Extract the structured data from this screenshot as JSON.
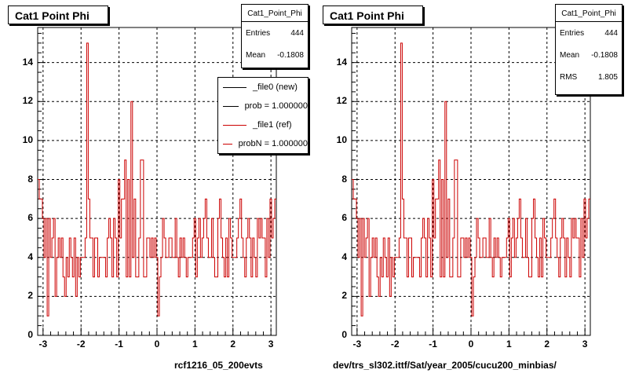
{
  "chart_data": [
    {
      "type": "line",
      "title": "Cat1 Point Phi",
      "xlim": [
        -3.1416,
        3.1416
      ],
      "ylim": [
        0,
        15.8
      ],
      "xticks": [
        -3,
        -2,
        -1,
        0,
        1,
        2,
        3
      ],
      "yticks": [
        0,
        2,
        4,
        6,
        8,
        10,
        12,
        14
      ],
      "grid": true,
      "caption": "rcf1216_05_200evts",
      "stats": {
        "title": "Cat1_Point_Phi",
        "rows": [
          {
            "label": "Entries",
            "value": "444"
          },
          {
            "label": "Mean",
            "value": "-0.1808"
          }
        ]
      },
      "legend": [
        {
          "label": "_file0 (new)",
          "color": "#000000"
        },
        {
          "label": "prob = 1.000000",
          "color": "#000000"
        },
        {
          "label": "_file1 (ref)",
          "color": "#cc0000"
        },
        {
          "label": "probN = 1.000000",
          "color": "#cc0000"
        }
      ],
      "series": [
        {
          "color": "#cc0000",
          "values": [
            8,
            7,
            7,
            6,
            4,
            6,
            1,
            6,
            4,
            5,
            6,
            2,
            4,
            5,
            4,
            5,
            3,
            2,
            4,
            3,
            5,
            4,
            3,
            5,
            2,
            4,
            3,
            4,
            4,
            4,
            5,
            15,
            7,
            5,
            5,
            3,
            5,
            5,
            3,
            4,
            4,
            4,
            4,
            3,
            5,
            6,
            5,
            3,
            6,
            5,
            3,
            8,
            5,
            7,
            7,
            9,
            3,
            8,
            3,
            12,
            4,
            7,
            3,
            3,
            5,
            9,
            9,
            3,
            3,
            5,
            5,
            4,
            5,
            4,
            5,
            4,
            1,
            3,
            4,
            6,
            5,
            4,
            4,
            5,
            5,
            4,
            4,
            6,
            4,
            3,
            5,
            4,
            5,
            4,
            3,
            4,
            4,
            4,
            5,
            6,
            3,
            5,
            6,
            4,
            5,
            6,
            7,
            5,
            4,
            4,
            6,
            4,
            3,
            3,
            6,
            7,
            5,
            4,
            3,
            5,
            3,
            6,
            5,
            4,
            4,
            4,
            5,
            6,
            7,
            5,
            4,
            3,
            5,
            6,
            5,
            3,
            5,
            4,
            3,
            6,
            5,
            6,
            5,
            5,
            3,
            6,
            4,
            7,
            5,
            6,
            7
          ]
        }
      ]
    },
    {
      "type": "line",
      "title": "Cat1 Point Phi",
      "xlim": [
        -3.1416,
        3.1416
      ],
      "ylim": [
        0,
        15.8
      ],
      "xticks": [
        -3,
        -2,
        -1,
        0,
        1,
        2,
        3
      ],
      "yticks": [
        0,
        2,
        4,
        6,
        8,
        10,
        12,
        14
      ],
      "grid": true,
      "caption": "dev/trs_sl302.ittf/Sat/year_2005/cucu200_minbias/",
      "stats": {
        "title": "Cat1_Point_Phi",
        "rows": [
          {
            "label": "Entries",
            "value": "444"
          },
          {
            "label": "Mean",
            "value": "-0.1808"
          },
          {
            "label": "RMS",
            "value": "1.805"
          }
        ]
      },
      "series": [
        {
          "color": "#cc0000",
          "values": [
            8,
            7,
            7,
            6,
            4,
            6,
            1,
            6,
            4,
            5,
            6,
            2,
            4,
            5,
            4,
            5,
            3,
            2,
            4,
            3,
            5,
            4,
            3,
            5,
            2,
            4,
            3,
            4,
            4,
            4,
            5,
            15,
            7,
            5,
            5,
            3,
            5,
            5,
            3,
            4,
            4,
            4,
            4,
            3,
            5,
            6,
            5,
            3,
            6,
            5,
            3,
            8,
            5,
            7,
            7,
            9,
            3,
            8,
            3,
            12,
            4,
            7,
            3,
            3,
            5,
            9,
            9,
            3,
            3,
            5,
            5,
            4,
            5,
            4,
            5,
            4,
            1,
            3,
            4,
            6,
            5,
            4,
            4,
            5,
            5,
            4,
            4,
            6,
            4,
            3,
            5,
            4,
            5,
            4,
            3,
            4,
            4,
            4,
            5,
            6,
            3,
            5,
            6,
            4,
            5,
            6,
            7,
            5,
            4,
            4,
            6,
            4,
            3,
            3,
            6,
            7,
            5,
            4,
            3,
            5,
            3,
            6,
            5,
            4,
            4,
            4,
            5,
            6,
            7,
            5,
            4,
            3,
            5,
            6,
            5,
            3,
            5,
            4,
            3,
            6,
            5,
            6,
            5,
            5,
            3,
            6,
            4,
            7,
            5,
            6,
            7
          ]
        }
      ]
    }
  ]
}
